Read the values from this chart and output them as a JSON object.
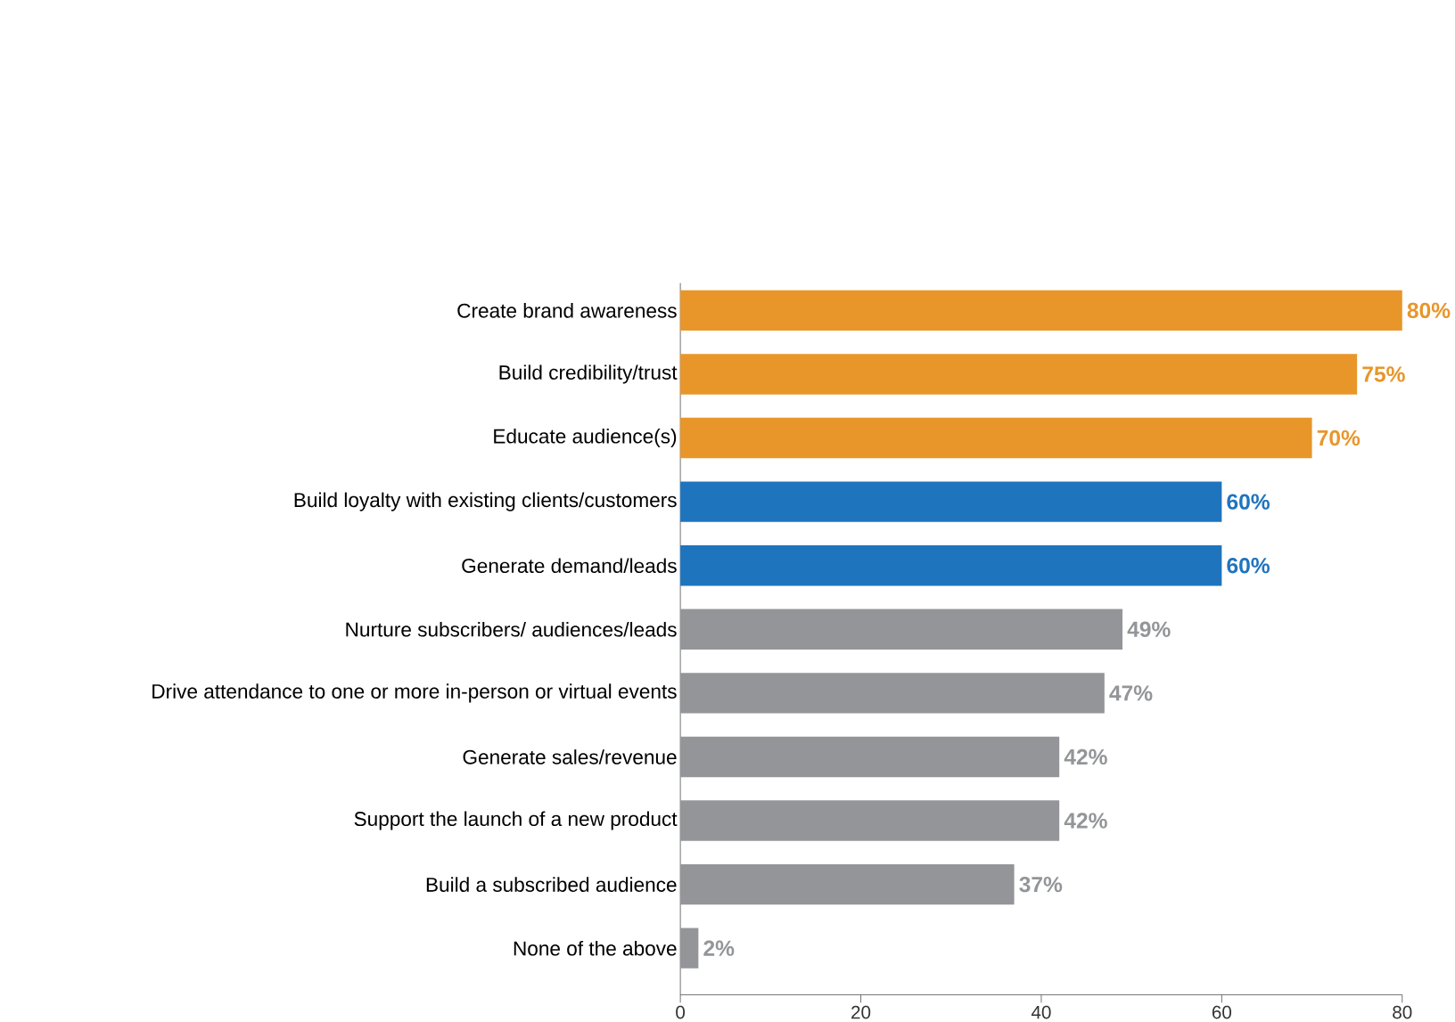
{
  "chart_data": {
    "type": "bar",
    "orientation": "horizontal",
    "categories": [
      "Create brand awareness",
      "Build credibility/trust",
      "Educate audience(s)",
      "Build loyalty with existing clients/customers",
      "Generate demand/leads",
      "Nurture subscribers/ audiences/leads",
      "Drive attendance to one or more in-person or virtual events",
      "Generate sales/revenue",
      "Support the launch of a new product",
      "Build a subscribed audience",
      "None of the above"
    ],
    "values": [
      80,
      75,
      70,
      60,
      60,
      49,
      47,
      42,
      42,
      37,
      2
    ],
    "value_labels": [
      "80%",
      "75%",
      "70%",
      "60%",
      "60%",
      "49%",
      "47%",
      "42%",
      "42%",
      "37%",
      "2%"
    ],
    "colors": [
      "#e8962a",
      "#e8962a",
      "#e8962a",
      "#1f74be",
      "#1f74be",
      "#939598",
      "#939598",
      "#939598",
      "#939598",
      "#939598",
      "#939598"
    ],
    "xlim": [
      0,
      80
    ],
    "xticks": [
      0,
      20,
      40,
      60,
      80
    ]
  }
}
